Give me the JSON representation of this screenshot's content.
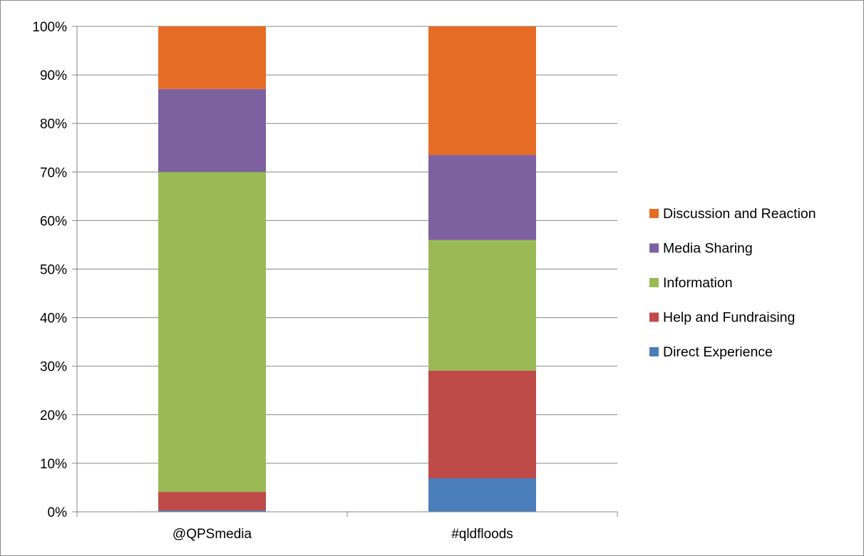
{
  "chart_data": {
    "type": "bar",
    "stacked": "100%",
    "categories": [
      "@QPSmedia",
      "#qldfloods"
    ],
    "series": [
      {
        "name": "Direct Experience",
        "color": "#4a7ebb",
        "values": [
          0.3,
          6.9
        ]
      },
      {
        "name": "Help and Fundraising",
        "color": "#be4b48",
        "values": [
          3.8,
          22.2
        ]
      },
      {
        "name": "Information",
        "color": "#98b954",
        "values": [
          65.9,
          26.9
        ]
      },
      {
        "name": "Media Sharing",
        "color": "#7d60a0",
        "values": [
          17.1,
          17.5
        ]
      },
      {
        "name": "Discussion and Reaction",
        "color": "#e46c24",
        "values": [
          12.9,
          26.5
        ]
      }
    ],
    "y_ticks": [
      "0%",
      "10%",
      "20%",
      "30%",
      "40%",
      "50%",
      "60%",
      "70%",
      "80%",
      "90%",
      "100%"
    ],
    "ylim": [
      0,
      100
    ],
    "grid": true,
    "legend_position": "right",
    "legend_order": [
      "Discussion and Reaction",
      "Media Sharing",
      "Information",
      "Help and Fundraising",
      "Direct Experience"
    ],
    "title": "",
    "xlabel": "",
    "ylabel": ""
  },
  "colors": {
    "gridline": "#868686",
    "axis": "#868686",
    "border": "#8c8c8c"
  }
}
